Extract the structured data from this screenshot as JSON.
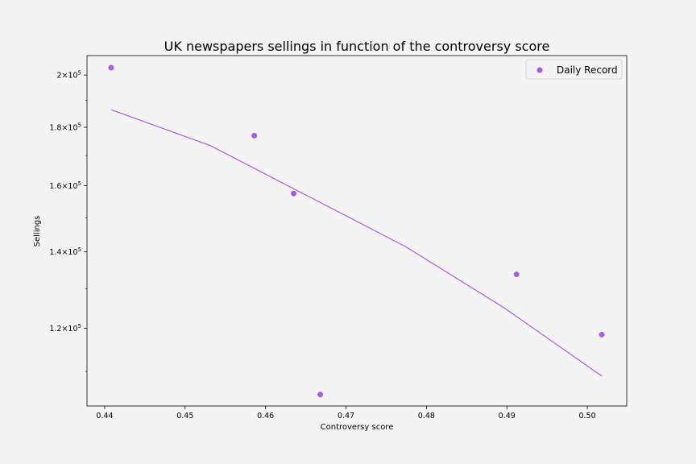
{
  "chart_data": {
    "type": "scatter",
    "title": "UK newspapers sellings in function of the controversy score",
    "xlabel": "Controversy score",
    "ylabel": "Sellings",
    "xlim": [
      0.4378,
      0.5049
    ],
    "ylim": [
      102600,
      208000
    ],
    "yscale": "log",
    "grid": false,
    "legend_position": "top-right",
    "x_ticks": [
      0.44,
      0.45,
      0.46,
      0.47,
      0.48,
      0.49,
      0.5
    ],
    "x_tick_labels": [
      "0.44",
      "0.45",
      "0.46",
      "0.47",
      "0.48",
      "0.49",
      "0.50"
    ],
    "y_ticks": [
      120000,
      140000,
      160000,
      180000,
      200000
    ],
    "y_tick_labels": [
      {
        "base": "1.2×10",
        "exp": "5"
      },
      {
        "base": "1.4×10",
        "exp": "5"
      },
      {
        "base": "1.6×10",
        "exp": "5"
      },
      {
        "base": "1.8×10",
        "exp": "5"
      },
      {
        "base": "2×10",
        "exp": "5"
      }
    ],
    "series": [
      {
        "name": "Daily Record",
        "kind": "scatter",
        "color": "#a45ee5",
        "x": [
          0.4408,
          0.4586,
          0.4635,
          0.4668,
          0.4912,
          0.5018
        ],
        "y": [
          203000,
          177000,
          157500,
          105000,
          133800,
          118500
        ]
      },
      {
        "kind": "line",
        "color": "#a45ee5",
        "x": [
          0.4408,
          0.4531,
          0.4654,
          0.4774,
          0.4897,
          0.5018
        ],
        "y": [
          186500,
          173500,
          156500,
          141500,
          125000,
          109000
        ]
      }
    ]
  }
}
